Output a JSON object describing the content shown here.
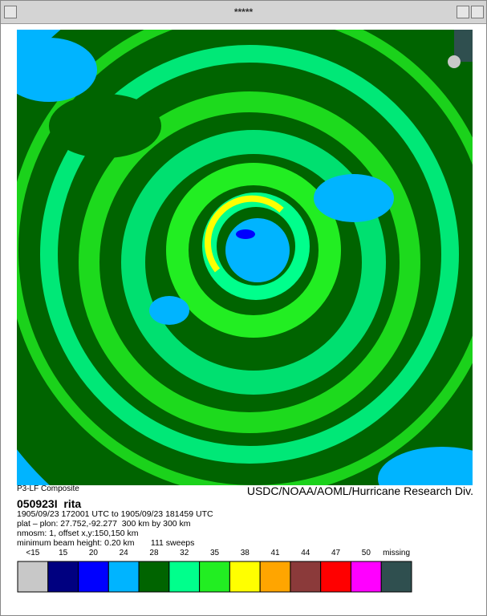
{
  "window": {
    "title": "*****"
  },
  "header": {
    "left": "P3-LF Composite",
    "right": "USDC/NOAA/AOML/Hurricane Research Div."
  },
  "info": {
    "name": "050923I  rita",
    "lines": [
      "1905/09/23 172001 UTC to 1905/09/23 181459 UTC",
      "plat – plon: 27.752,-92.277  300 km by 300 km",
      "nmosm: 1, offset x,y:150,150 km",
      "minimum beam height: 0.20 km       111 sweeps"
    ]
  },
  "legend": [
    {
      "label": "<15",
      "color": "#c8c8c8"
    },
    {
      "label": "15",
      "color": "#000080"
    },
    {
      "label": "20",
      "color": "#0000ff"
    },
    {
      "label": "24",
      "color": "#00b4ff"
    },
    {
      "label": "28",
      "color": "#006400"
    },
    {
      "label": "32",
      "color": "#00ff8c"
    },
    {
      "label": "35",
      "color": "#22ee22"
    },
    {
      "label": "38",
      "color": "#ffff00"
    },
    {
      "label": "41",
      "color": "#ffa500"
    },
    {
      "label": "44",
      "color": "#8b3a3a"
    },
    {
      "label": "47",
      "color": "#ff0000"
    },
    {
      "label": "50",
      "color": "#ff00ff"
    },
    {
      "label": "missing",
      "color": "#2f4f4f"
    }
  ]
}
